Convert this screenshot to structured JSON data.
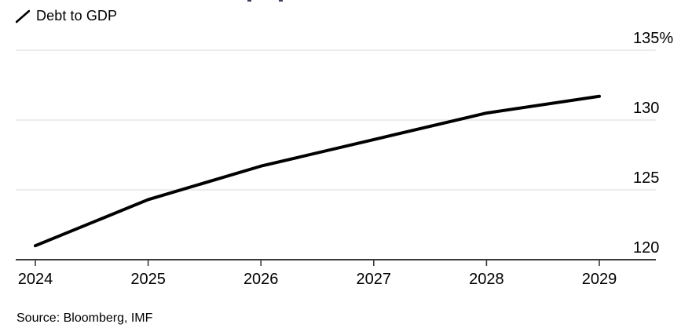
{
  "legend": {
    "label": "Debt to GDP",
    "marker": "diagonal-line"
  },
  "source": {
    "text": "Source: Bloomberg, IMF"
  },
  "colors": {
    "line": "#000000",
    "grid": "#e5e5e5",
    "axis": "#3a3a3a",
    "text": "#000000",
    "background": "#ffffff"
  },
  "chart_data": {
    "type": "line",
    "title": "",
    "categories": [
      "2024",
      "2025",
      "2026",
      "2027",
      "2028",
      "2029"
    ],
    "series": [
      {
        "name": "Debt to GDP",
        "color": "#000000",
        "values": [
          121.0,
          124.3,
          126.7,
          128.6,
          130.5,
          131.7
        ]
      }
    ],
    "xlabel": "",
    "ylabel": "",
    "unit": "%",
    "ylim": [
      120,
      135
    ],
    "ytick_values": [
      135,
      130,
      125,
      120
    ],
    "ytick_labels": [
      "135%",
      "130",
      "125",
      "120"
    ],
    "grid": "horizontal",
    "legend_position": "top-left",
    "y_axis_side": "right"
  }
}
